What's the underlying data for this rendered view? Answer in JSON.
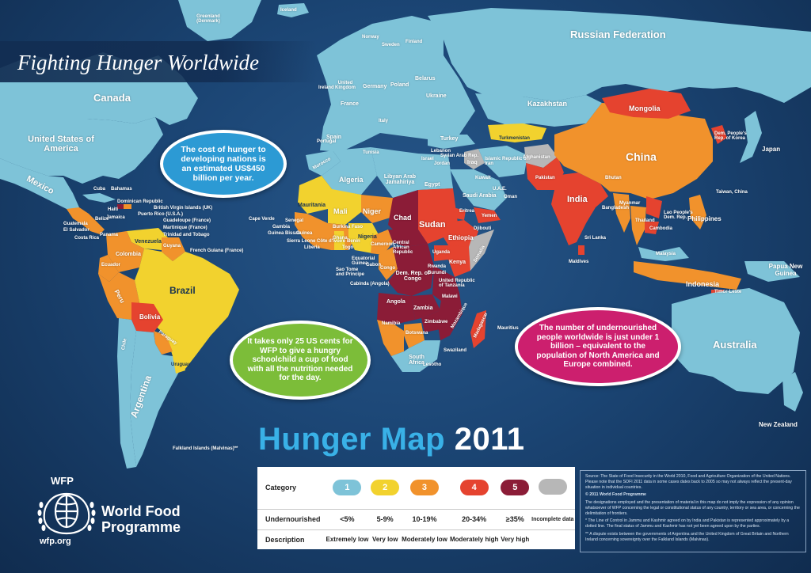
{
  "title": "Fighting Hunger Worldwide",
  "headline": {
    "part1": "Hunger Map",
    "part2": "2011"
  },
  "colors": {
    "ocean": "#1b4574",
    "category_1": "#7ec3d8",
    "category_2": "#f2d22e",
    "category_3": "#f1922c",
    "category_4": "#e5432f",
    "category_5": "#8b1c37",
    "incomplete": "#b7b7b7"
  },
  "bubbles": {
    "cost": "The cost of hunger to developing nations is an estimated US$450 billion per year.",
    "cents": "It takes only 25 US cents for WFP to give a hungry schoolchild a cup of food with all the nutrition needed for the day.",
    "billion": "The number of undernourished people worldwide is just under 1 billion – equivalent to the population of North America and Europe combined."
  },
  "legend": {
    "row_labels": {
      "category": "Category",
      "undernourished": "Undernourished",
      "description": "Description"
    },
    "items": [
      {
        "category": "1",
        "undernourished": "<5%",
        "description": "Extremely low",
        "color": "#7ec3d8"
      },
      {
        "category": "2",
        "undernourished": "5-9%",
        "description": "Very low",
        "color": "#f2d22e"
      },
      {
        "category": "3",
        "undernourished": "10-19%",
        "description": "Moderately low",
        "color": "#f1922c"
      },
      {
        "category": "4",
        "undernourished": "20-34%",
        "description": "Moderately high",
        "color": "#e5432f"
      },
      {
        "category": "5",
        "undernourished": "≥35%",
        "description": "Very high",
        "color": "#8b1c37"
      },
      {
        "category": "",
        "undernourished": "Incomplete data",
        "description": "",
        "color": "#b7b7b7"
      }
    ]
  },
  "notes": {
    "source": "Source: The State of Food Insecurity in the World 2010, Food and Agriculture Organization of the United Nations. Please note that the SOFI 2011 data in some cases dates back to 2005 so may not always reflect the present-day situation in individual countries.",
    "copyright": "© 2011 World Food Programme",
    "disclaimer": "The designations employed and the presentation of material in this map do not imply the expression of any opinion whatsoever of WFP concerning the legal or constitutional status of any country, territory or sea area, or concerning the delimitation of frontiers.",
    "kashmir": "* The Line of Control in Jammu and Kashmir agreed on by India and Pakistan is represented approximately by a dotted line. The final status of Jammu and Kashmir has not yet been agreed upon by the parties.",
    "falklands": "** A dispute exists between the governments of Argentina and the United Kingdom of Great Britain and Northern Ireland concerning sovereignty over the Falkland Islands (Malvinas)."
  },
  "organization": {
    "abbreviation": "WFP",
    "name_line1": "World Food",
    "name_line2": "Programme",
    "url": "wfp.org"
  },
  "countries": {
    "russia": "Russian Federation",
    "canada": "Canada",
    "usa": "United States of America",
    "mexico": "Mexico",
    "greenland": "Greenland (Denmark)",
    "iceland": "Iceland",
    "norway": "Norway",
    "sweden": "Sweden",
    "finland": "Finland",
    "uk": "United Kingdom",
    "ireland": "Ireland",
    "france": "France",
    "spain": "Spain",
    "portugal": "Portugal",
    "germany": "Germany",
    "poland": "Poland",
    "belarus": "Belarus",
    "ukraine": "Ukraine",
    "italy": "Italy",
    "turkey": "Turkey",
    "kazakhstan": "Kazakhstan",
    "mongolia": "Mongolia",
    "china": "China",
    "japan": "Japan",
    "north_korea": "Dem. People's Rep. of Korea",
    "india": "India",
    "pakistan": "Pakistan",
    "afghanistan": "Afghanistan",
    "iran": "Islamic Republic of Iran",
    "iraq": "Iraq",
    "saudi": "Saudi Arabia",
    "turkmenistan": "Turkmenistan",
    "egypt": "Egypt",
    "libya": "Libyan Arab Jamahiriya",
    "algeria": "Algeria",
    "morocco": "Morocco",
    "mauritania": "Mauritania",
    "mali": "Mali",
    "niger": "Niger",
    "chad": "Chad",
    "sudan": "Sudan",
    "ethiopia": "Ethiopia",
    "nigeria": "Nigeria",
    "kenya": "Kenya",
    "drc": "Dem. Rep. of Congo",
    "angola": "Angola",
    "zambia": "Zambia",
    "namibia": "Namibia",
    "botswana": "Botswana",
    "south_africa": "South Africa",
    "madagascar": "Madagascar",
    "tanzania": "United Republic of Tanzania",
    "car": "Central African Republic",
    "somalia": "Somalia",
    "eritrea": "Eritrea",
    "yemen": "Yemen",
    "brazil": "Brazil",
    "venezuela": "Venezuela",
    "colombia": "Colombia",
    "peru": "Peru",
    "bolivia": "Bolivia",
    "paraguay": "Paraguay",
    "argentina": "Argentina",
    "chile": "Chile",
    "uruguay": "Uruguay",
    "ecuador": "Ecuador",
    "guyana": "Guyana",
    "french_guiana": "French Guiana (France)",
    "panama": "Panama",
    "cuba": "Cuba",
    "dominican_republic": "Dominican Republic",
    "haiti": "Haiti",
    "belize": "Belize",
    "guatemala": "Guatemala",
    "el_salvador": "El Salvador",
    "costa_rica": "Costa Rica",
    "bahamas": "Bahamas",
    "jamaica": "Jamaica",
    "puerto_rico": "Puerto Rico (U.S.A.)",
    "virgin_islands": "British Virgin Islands (UK)",
    "guadeloupe": "Guadeloupe (France)",
    "martinique": "Martinique (France)",
    "trinidad": "Trinidad and Tobago",
    "cape_verde": "Cape Verde",
    "gambia": "Gambia",
    "guinea_bissau": "Guinea Bissau",
    "sierra_leone": "Sierra Leone",
    "ghana": "Ghana",
    "burkina_faso": "Burkina Faso",
    "cote_divoire": "Côte d'Ivoire",
    "equatorial_guinea": "Equatorial Guinea",
    "sao_tome": "Sao Tome and Principe",
    "cabinda": "Cabinda (Angola)",
    "zimbabwe": "Zimbabwe",
    "swaziland": "Swaziland",
    "lesotho": "Lesotho",
    "mauritius": "Mauritius",
    "maldives": "Maldives",
    "sri_lanka": "Sri Lanka",
    "bangladesh": "Bangladesh",
    "bhutan": "Bhutan",
    "myanmar": "Myanmar",
    "thailand": "Thailand",
    "cambodia": "Cambodia",
    "laos": "Lao People's Dem. Rep.",
    "philippines": "Philippines",
    "malaysia": "Malaysia",
    "indonesia": "Indonesia",
    "timor_leste": "Timor-Leste",
    "papua": "Papua New Guinea",
    "australia": "Australia",
    "new_zealand": "New Zealand",
    "taiwan": "Taiwan, China",
    "falklands": "Falkland Islands (Malvinas)**",
    "kuwait": "Kuwait",
    "oman": "Oman",
    "uae": "U.A.E.",
    "jordan": "Jordan",
    "syria": "Syrian Arab Rep.",
    "lebanon": "Lebanon",
    "israel": "Israel",
    "uganda": "Uganda",
    "rwanda": "Rwanda",
    "burundi": "Burundi",
    "malawi": "Malawi",
    "mozambique": "Mozambique",
    "gabon": "Gabon",
    "congo": "Congo",
    "cameroon": "Cameroon",
    "benin": "Benin",
    "togo": "Togo",
    "guinea": "Guinea",
    "senegal": "Senegal",
    "liberia": "Liberia",
    "djibouti": "Djibouti",
    "tunisia": "Tunisia"
  }
}
